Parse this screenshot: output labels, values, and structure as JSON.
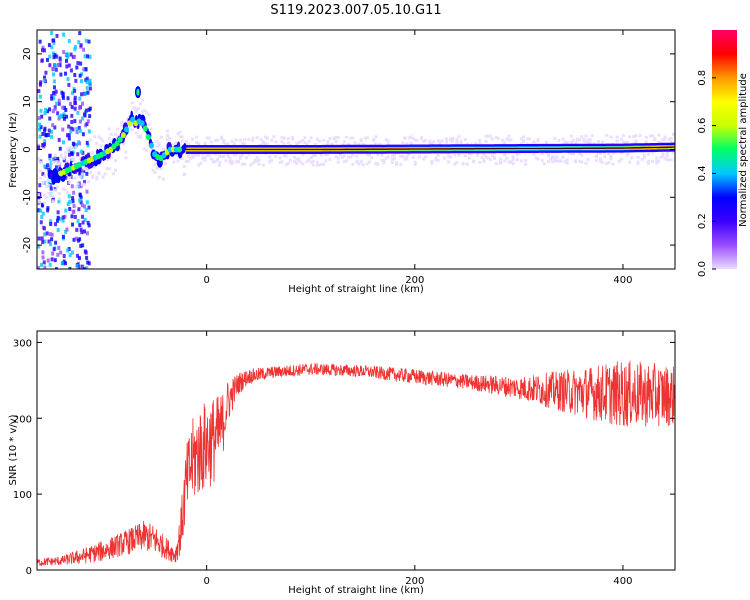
{
  "figure_title": "S119.2023.007.05.10.G11",
  "chart_data": [
    {
      "type": "heatmap",
      "xlabel": "Height of straight line (km)",
      "ylabel": "Frequency (Hz)",
      "xlim": [
        -163,
        450
      ],
      "ylim": [
        -25,
        25
      ],
      "xticks": [
        0,
        200,
        400
      ],
      "yticks": [
        20,
        10,
        0,
        -10,
        -20
      ],
      "grid": false,
      "ridge": {
        "x": [
          -150,
          -140,
          -130,
          -120,
          -110,
          -100,
          -92,
          -85,
          -80,
          -75,
          -72,
          -68,
          -64,
          -60,
          -55,
          -50,
          -45,
          -40,
          -35,
          -30,
          -25,
          -20,
          -10,
          0,
          50,
          100,
          200,
          300,
          400,
          450
        ],
        "y": [
          -6,
          -5,
          -4,
          -3,
          -2,
          -1,
          0,
          1.5,
          3,
          5,
          6.5,
          5.5,
          6,
          5,
          2,
          -1,
          -2,
          -1,
          0,
          0,
          0,
          0,
          0,
          0,
          0,
          0,
          0.1,
          0.2,
          0.3,
          0.5
        ]
      },
      "colorbar": {
        "label": "Normalized spectral amplitude",
        "ticks": [
          "0.0",
          "0.2",
          "0.4",
          "0.6",
          "0.8"
        ],
        "range": [
          0,
          1
        ],
        "colors": [
          "#e9dcff",
          "#9a4dff",
          "#3a00ff",
          "#0000ff",
          "#00c8ff",
          "#00ff66",
          "#c8ff00",
          "#ffff00",
          "#ff9900",
          "#ff0000",
          "#ff0066"
        ]
      }
    },
    {
      "type": "line",
      "xlabel": "Height of straight line (km)",
      "ylabel": "SNR (10 * v/v)",
      "xlim": [
        -163,
        450
      ],
      "ylim": [
        0,
        315
      ],
      "xticks": [
        0,
        200,
        400
      ],
      "yticks": [
        0,
        100,
        200,
        300
      ],
      "grid": false,
      "color": "#ee3333",
      "series": [
        {
          "x": [
            -163,
            -140,
            -120,
            -100,
            -80,
            -60,
            -50,
            -40,
            -30,
            -25,
            -20,
            -15,
            -10,
            -5,
            0,
            5,
            10,
            15,
            20,
            30,
            40,
            60,
            100,
            150,
            200,
            250,
            300,
            350,
            400,
            450
          ],
          "y": [
            10,
            12,
            18,
            25,
            35,
            45,
            40,
            30,
            20,
            50,
            110,
            140,
            150,
            160,
            165,
            170,
            175,
            190,
            220,
            245,
            255,
            260,
            265,
            262,
            255,
            248,
            240,
            235,
            232,
            230
          ],
          "noise": [
            5,
            6,
            10,
            14,
            16,
            20,
            20,
            15,
            12,
            30,
            50,
            55,
            60,
            60,
            60,
            60,
            55,
            45,
            30,
            15,
            10,
            8,
            8,
            8,
            10,
            10,
            15,
            30,
            45,
            40
          ]
        }
      ]
    }
  ]
}
